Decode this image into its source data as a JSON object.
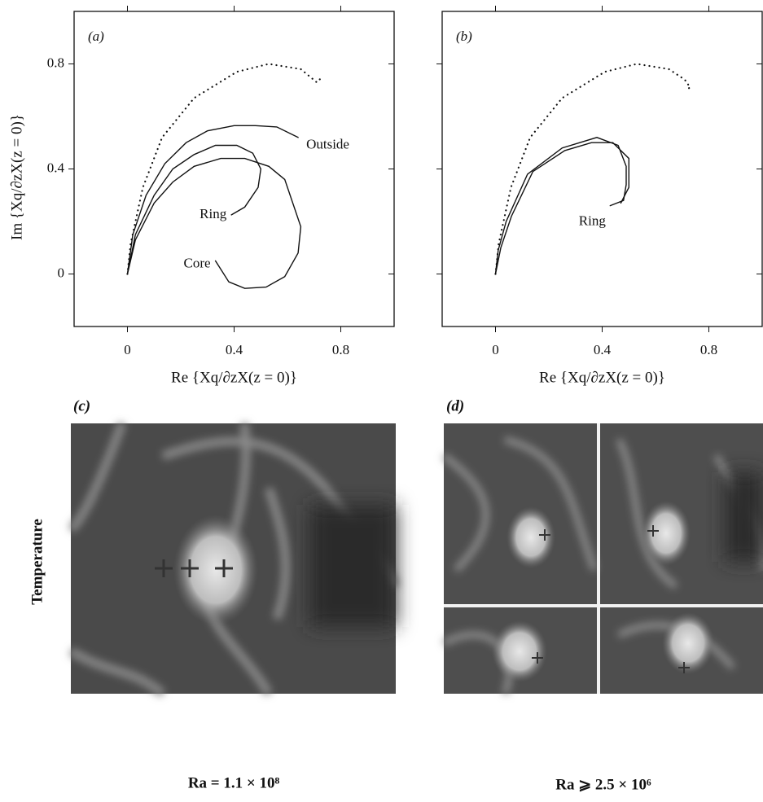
{
  "chart_data": [
    {
      "type": "line",
      "panel_label": "(a)",
      "x_label": "Re {Xq/∂zX(z = 0)}",
      "y_label": "Im {Xq/∂zX(z = 0)}",
      "xlim": [
        -0.2,
        1.0
      ],
      "ylim": [
        -0.2,
        1.0
      ],
      "xticks": [
        0,
        0.4,
        0.8
      ],
      "yticks": [
        0,
        0.4,
        0.8
      ],
      "series": [
        {
          "style": "dotted",
          "color": "#111111",
          "x": [
            0,
            0.012,
            0.058,
            0.13,
            0.25,
            0.41,
            0.53,
            0.65,
            0.71,
            0.73
          ],
          "values": [
            0,
            0.115,
            0.33,
            0.52,
            0.67,
            0.77,
            0.8,
            0.78,
            0.73,
            0.75
          ]
        },
        {
          "name": "Outside",
          "style": "solid",
          "color": "#111111",
          "x": [
            0,
            0.02,
            0.07,
            0.14,
            0.22,
            0.3,
            0.4,
            0.48,
            0.56,
            0.64
          ],
          "values": [
            0,
            0.15,
            0.3,
            0.42,
            0.5,
            0.545,
            0.565,
            0.565,
            0.56,
            0.52
          ]
        },
        {
          "name": "Ring",
          "style": "solid",
          "color": "#111111",
          "x": [
            0,
            0.03,
            0.1,
            0.17,
            0.25,
            0.33,
            0.41,
            0.47,
            0.5,
            0.49,
            0.44,
            0.39
          ],
          "values": [
            0,
            0.15,
            0.3,
            0.4,
            0.455,
            0.49,
            0.49,
            0.46,
            0.4,
            0.33,
            0.255,
            0.225
          ]
        },
        {
          "name": "Core",
          "style": "solid",
          "color": "#111111",
          "x": [
            0,
            0.03,
            0.1,
            0.17,
            0.25,
            0.35,
            0.44,
            0.53,
            0.59,
            0.65,
            0.64,
            0.59,
            0.52,
            0.44,
            0.38,
            0.33
          ],
          "values": [
            0,
            0.13,
            0.27,
            0.35,
            0.41,
            0.44,
            0.44,
            0.41,
            0.36,
            0.18,
            0.08,
            -0.01,
            -0.05,
            -0.055,
            -0.03,
            0.05
          ]
        }
      ]
    },
    {
      "type": "line",
      "panel_label": "(b)",
      "x_label": "Re {Xq/∂zX(z = 0)}",
      "xlim": [
        -0.2,
        1.0
      ],
      "ylim": [
        -0.2,
        1.0
      ],
      "xticks": [
        0,
        0.4,
        0.8
      ],
      "yticks": [
        0,
        0.4,
        0.8
      ],
      "series": [
        {
          "style": "dotted",
          "color": "#111111",
          "x": [
            0,
            0.012,
            0.058,
            0.13,
            0.25,
            0.41,
            0.53,
            0.65,
            0.71,
            0.73,
            0.71
          ],
          "values": [
            0,
            0.115,
            0.33,
            0.52,
            0.67,
            0.77,
            0.8,
            0.78,
            0.74,
            0.71,
            0.7
          ]
        },
        {
          "name": "Ring",
          "style": "solid",
          "color": "#111111",
          "x": [
            0,
            0.01,
            0.04,
            0.12,
            0.25,
            0.38,
            0.46,
            0.49,
            0.49,
            0.48,
            0.43
          ],
          "values": [
            0,
            0.09,
            0.2,
            0.38,
            0.48,
            0.52,
            0.49,
            0.41,
            0.34,
            0.28,
            0.26
          ]
        },
        {
          "style": "solid",
          "color": "#111111",
          "x": [
            0,
            0.02,
            0.06,
            0.14,
            0.26,
            0.36,
            0.44,
            0.5,
            0.5,
            0.47
          ],
          "values": [
            0,
            0.1,
            0.22,
            0.39,
            0.47,
            0.5,
            0.5,
            0.44,
            0.33,
            0.27
          ]
        }
      ]
    }
  ],
  "panel_c": {
    "label": "(c)",
    "side_label": "Temperature",
    "caption": "Ra = 1.1 × 10⁸"
  },
  "panel_d": {
    "label": "(d)",
    "caption": "Ra ⩾ 2.5 × 10⁶"
  }
}
